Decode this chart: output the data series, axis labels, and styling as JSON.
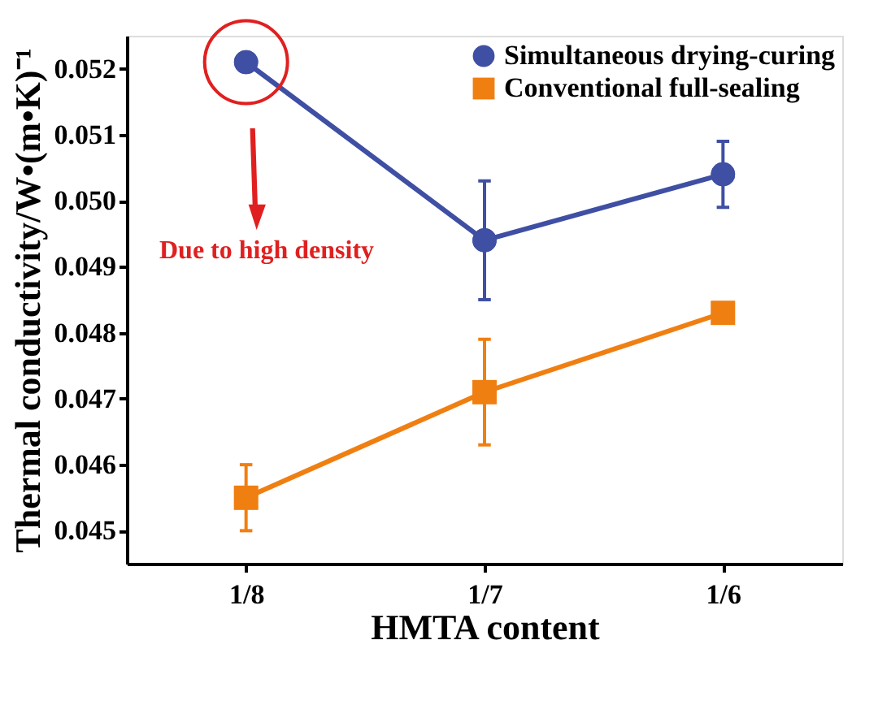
{
  "chart_data": {
    "type": "line",
    "xlabel": "HMTA content",
    "ylabel": "Thermal conductivity/W•(m•K)⁻¹",
    "categories": [
      "1/8",
      "1/7",
      "1/6"
    ],
    "series": [
      {
        "name": "Simultaneous drying-curing",
        "color": "#3f4fa3",
        "marker": "circle",
        "values": [
          0.0521,
          0.0494,
          0.0504
        ],
        "errors": [
          null,
          [
            0.0485,
            0.0503
          ],
          [
            0.0499,
            0.0509
          ]
        ]
      },
      {
        "name": "Conventional full-sealing",
        "color": "#f07f12",
        "marker": "square",
        "values": [
          0.0455,
          0.0471,
          0.0483
        ],
        "errors": [
          [
            0.045,
            0.046
          ],
          [
            0.0463,
            0.0479
          ],
          null
        ]
      }
    ],
    "ylim": [
      0.0445,
      0.0525
    ],
    "yticks": [
      0.045,
      0.046,
      0.047,
      0.048,
      0.049,
      {
        "value": 0.05,
        "label": "0.050"
      },
      0.051,
      0.052
    ],
    "grid": false,
    "legend": "top right",
    "line_style": "solid",
    "annotations": [
      "Due to high density"
    ]
  }
}
